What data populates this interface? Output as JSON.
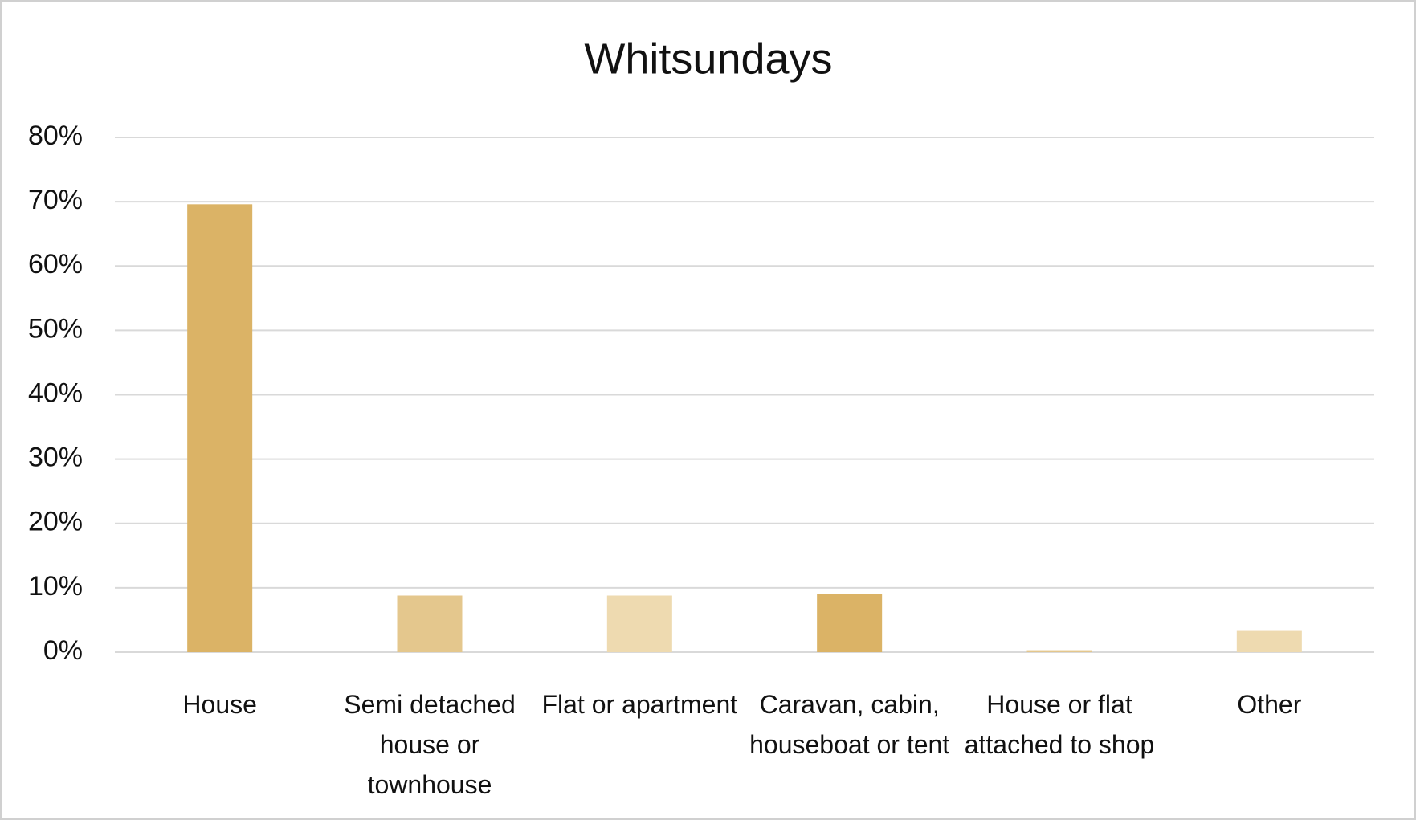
{
  "chart_data": {
    "type": "bar",
    "title": "Whitsundays",
    "categories": [
      "House",
      "Semi detached house or townhouse",
      "Flat or apartment",
      "Caravan, cabin, houseboat or tent",
      "House or flat attached to shop",
      "Other"
    ],
    "values": [
      69.6,
      8.8,
      8.8,
      9.0,
      0.3,
      3.3
    ],
    "colors": [
      "#dbb366",
      "#e4c78d",
      "#eedab0",
      "#dbb366",
      "#e4c78d",
      "#eedab0"
    ],
    "ylim": [
      0,
      80
    ],
    "yticks": [
      {
        "value": 0,
        "label": "0%"
      },
      {
        "value": 10,
        "label": "10%"
      },
      {
        "value": 20,
        "label": "20%"
      },
      {
        "value": 30,
        "label": "30%"
      },
      {
        "value": 40,
        "label": "40%"
      },
      {
        "value": 50,
        "label": "50%"
      },
      {
        "value": 60,
        "label": "60%"
      },
      {
        "value": 70,
        "label": "70%"
      },
      {
        "value": 80,
        "label": "80%"
      }
    ],
    "grid": true
  }
}
